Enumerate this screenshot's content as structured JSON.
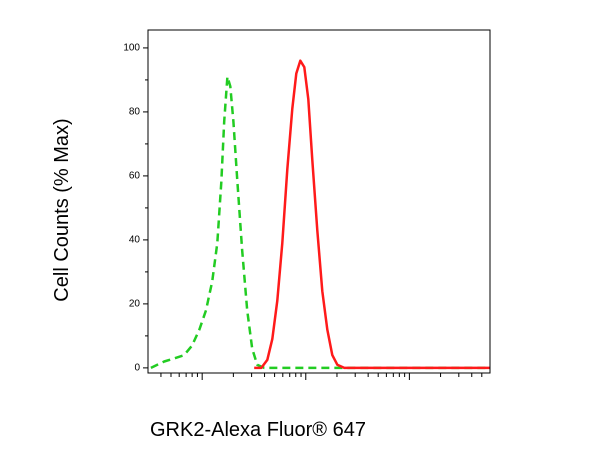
{
  "chart_data": {
    "type": "line",
    "x_label": "GRK2-Alexa Fluor® 647",
    "y_label": "Cell Counts (% Max)",
    "xscale": "log",
    "xlim": [
      3,
      6000
    ],
    "xticks": [
      10,
      100,
      1000
    ],
    "ylim": [
      -1.6,
      105.6
    ],
    "yticks": [
      0,
      20,
      40,
      60,
      80,
      100
    ],
    "series": [
      {
        "color": "#22cc22",
        "style": "dashed",
        "x": [
          3.2,
          4.3,
          5.4,
          6.7,
          8.0,
          9.4,
          10.9,
          12.5,
          14.0,
          15.3,
          16.3,
          17.5,
          18.7,
          20.0,
          21.8,
          24.3,
          27.2,
          30.4,
          34.0,
          39.7,
          5930
        ],
        "values": [
          0,
          2,
          3,
          4,
          7,
          12,
          18,
          27,
          39,
          58,
          77,
          91,
          88,
          77,
          59,
          37,
          18,
          6,
          1,
          0,
          0
        ]
      },
      {
        "color": "#ff1a1a",
        "style": "solid",
        "x": [
          31.8,
          37.2,
          42.5,
          47.5,
          53.1,
          59.3,
          66.3,
          74.1,
          81.0,
          88.5,
          96.8,
          105.7,
          115.6,
          129.2,
          144.3,
          161.4,
          180.4,
          201.5,
          235.5,
          5930
        ],
        "values": [
          0,
          0,
          2.5,
          9,
          21,
          39,
          62,
          81,
          92,
          96,
          94,
          84,
          65,
          43,
          24,
          12,
          4,
          1,
          0,
          0
        ]
      }
    ]
  }
}
